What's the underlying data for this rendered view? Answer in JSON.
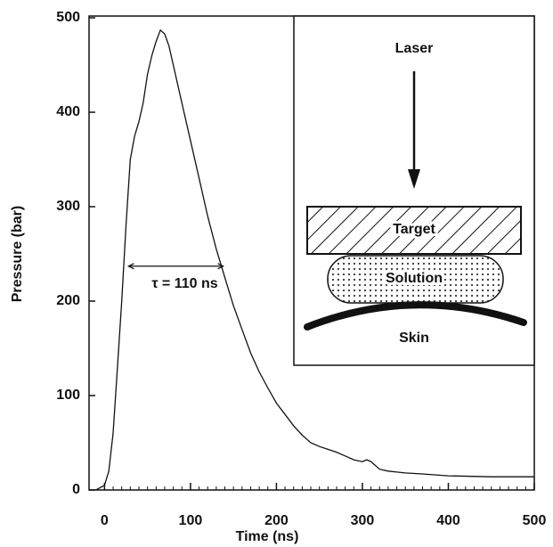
{
  "chart_data": {
    "type": "line",
    "xlabel": "Time (ns)",
    "ylabel": "Pressure (bar)",
    "xlim": [
      -18,
      500
    ],
    "ylim": [
      0,
      500
    ],
    "xticks": [
      0,
      100,
      200,
      300,
      400,
      500
    ],
    "yticks": [
      0,
      100,
      200,
      300,
      400,
      500
    ],
    "color": "#111111",
    "x": [
      -10,
      0,
      5,
      10,
      15,
      20,
      25,
      30,
      35,
      40,
      45,
      50,
      55,
      60,
      65,
      70,
      75,
      80,
      90,
      100,
      110,
      120,
      130,
      140,
      150,
      160,
      170,
      180,
      190,
      200,
      210,
      220,
      230,
      240,
      250,
      260,
      270,
      280,
      290,
      300,
      305,
      310,
      320,
      330,
      340,
      350,
      370,
      400,
      450,
      500
    ],
    "values": [
      0,
      5,
      20,
      60,
      130,
      200,
      280,
      350,
      375,
      390,
      410,
      440,
      460,
      475,
      487,
      483,
      470,
      450,
      410,
      370,
      330,
      290,
      255,
      225,
      195,
      170,
      145,
      125,
      108,
      92,
      80,
      68,
      58,
      50,
      46,
      43,
      40,
      36,
      32,
      30,
      32,
      30,
      22,
      20,
      19,
      18,
      17,
      15,
      14,
      14
    ],
    "annotation": {
      "text": "τ = 110 ns",
      "x": [
        28,
        138
      ],
      "y": 237
    },
    "inset": {
      "laser": "Laser",
      "target": "Target",
      "solution": "Solution",
      "skin": "Skin"
    }
  }
}
